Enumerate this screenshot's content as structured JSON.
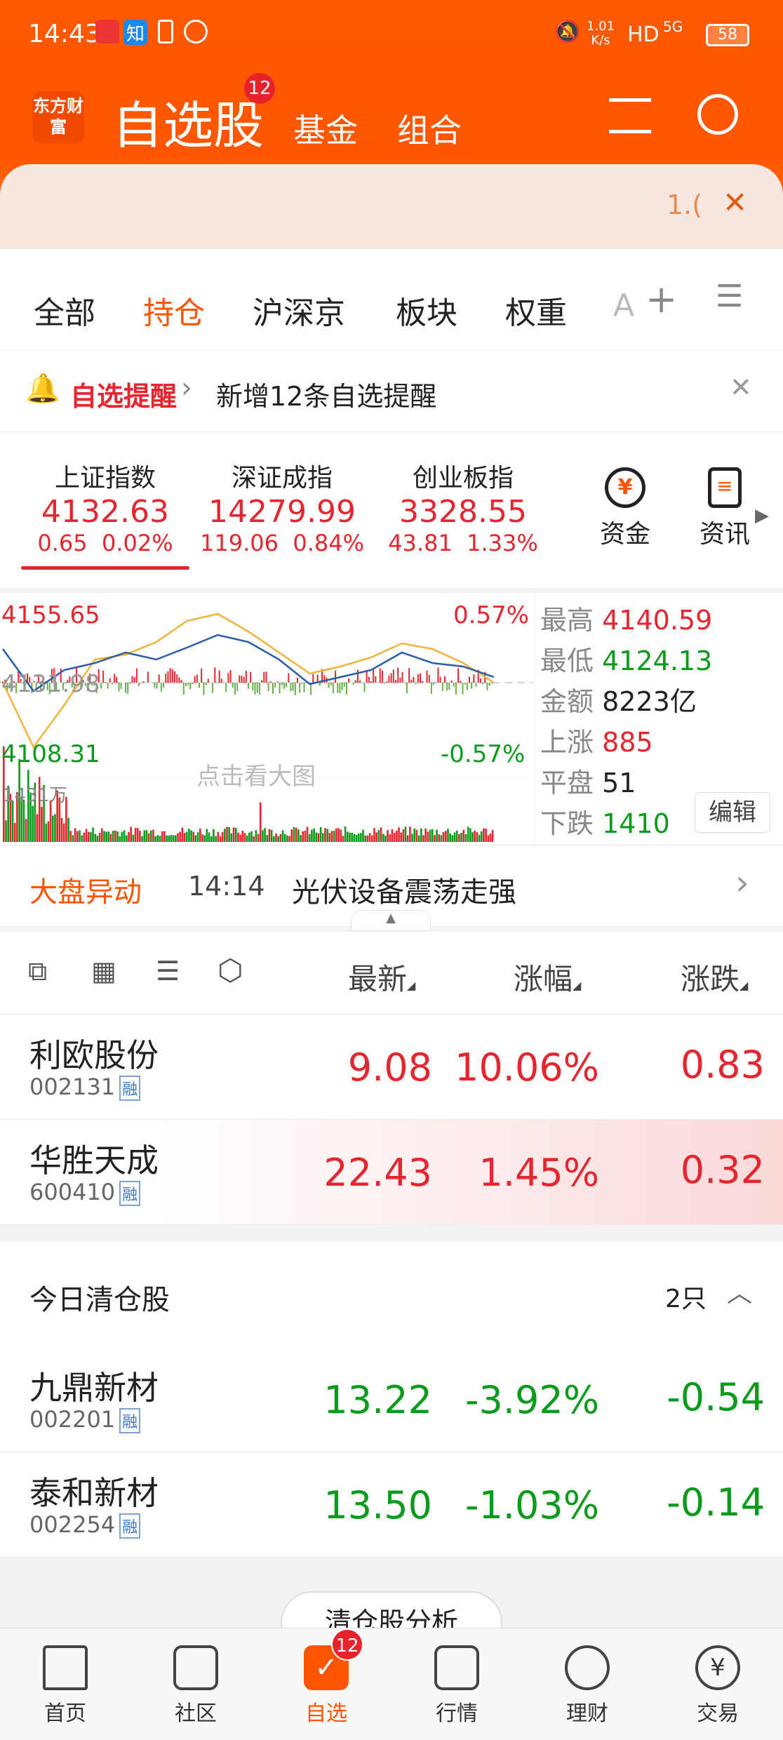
{
  "status": {
    "time": "14:43",
    "speed": "1.01",
    "speed_unit": "K/s",
    "hd": "HD",
    "net": "5G",
    "battery": "58"
  },
  "header": {
    "logo": "东方财富",
    "title": "自选股",
    "badge": "12",
    "tabs": [
      "基金",
      "组合"
    ]
  },
  "banner": {
    "text": "1.("
  },
  "tabs": [
    "全部",
    "持仓",
    "沪深京",
    "板块",
    "权重",
    "A"
  ],
  "alert": {
    "title": "自选提醒",
    "text": "新增12条自选提醒"
  },
  "indices": [
    {
      "name": "上证指数",
      "value": "4132.63",
      "change": "0.65",
      "pct": "0.02%"
    },
    {
      "name": "深证成指",
      "value": "14279.99",
      "change": "119.06",
      "pct": "0.84%"
    },
    {
      "name": "创业板指",
      "value": "3328.55",
      "change": "43.81",
      "pct": "1.33%"
    }
  ],
  "shortcuts": [
    {
      "label": "资金",
      "icon": "yen-cycle-icon"
    },
    {
      "label": "资讯",
      "icon": "news-icon"
    }
  ],
  "chart": {
    "high_label": "4155.65",
    "low_label": "4108.31",
    "mid_label": "4131.98",
    "pct_high": "0.57%",
    "pct_low": "-0.57%",
    "volume": "1431万",
    "hint": "点击看大图"
  },
  "stats": [
    {
      "label": "最高",
      "value": "4140.59",
      "color": "#e3262f"
    },
    {
      "label": "最低",
      "value": "4124.13",
      "color": "#0a9b1c"
    },
    {
      "label": "金额",
      "value": "8223亿",
      "color": "#222222"
    },
    {
      "label": "上涨",
      "value": "885",
      "color": "#e3262f"
    },
    {
      "label": "平盘",
      "value": "51",
      "color": "#222222"
    },
    {
      "label": "下跌",
      "value": "1410",
      "color": "#0a9b1c"
    }
  ],
  "edit": "编辑",
  "market_move": {
    "label": "大盘异动",
    "time": "14:14",
    "text": "光伏设备震荡走强"
  },
  "columns": [
    "最新",
    "涨幅",
    "涨跌"
  ],
  "holdings": [
    {
      "name": "利欧股份",
      "code": "002131",
      "tag": "融",
      "price": "9.08",
      "pct": "10.06%",
      "chg": "0.83"
    },
    {
      "name": "华胜天成",
      "code": "600410",
      "tag": "融",
      "price": "22.43",
      "pct": "1.45%",
      "chg": "0.32"
    }
  ],
  "cleared": {
    "title": "今日清仓股",
    "count": "2只",
    "button": "清仓股分析",
    "items": [
      {
        "name": "九鼎新材",
        "code": "002201",
        "tag": "融",
        "price": "13.22",
        "pct": "-3.92%",
        "chg": "-0.54"
      },
      {
        "name": "泰和新材",
        "code": "002254",
        "tag": "融",
        "price": "13.50",
        "pct": "-1.03%",
        "chg": "-0.14"
      }
    ]
  },
  "nav": [
    {
      "label": "首页"
    },
    {
      "label": "社区"
    },
    {
      "label": "自选",
      "badge": "12"
    },
    {
      "label": "行情"
    },
    {
      "label": "理财"
    },
    {
      "label": "交易"
    }
  ],
  "colors": {
    "brand": "#ff5500",
    "up": "#e3262f",
    "down": "#0a9b1c"
  }
}
